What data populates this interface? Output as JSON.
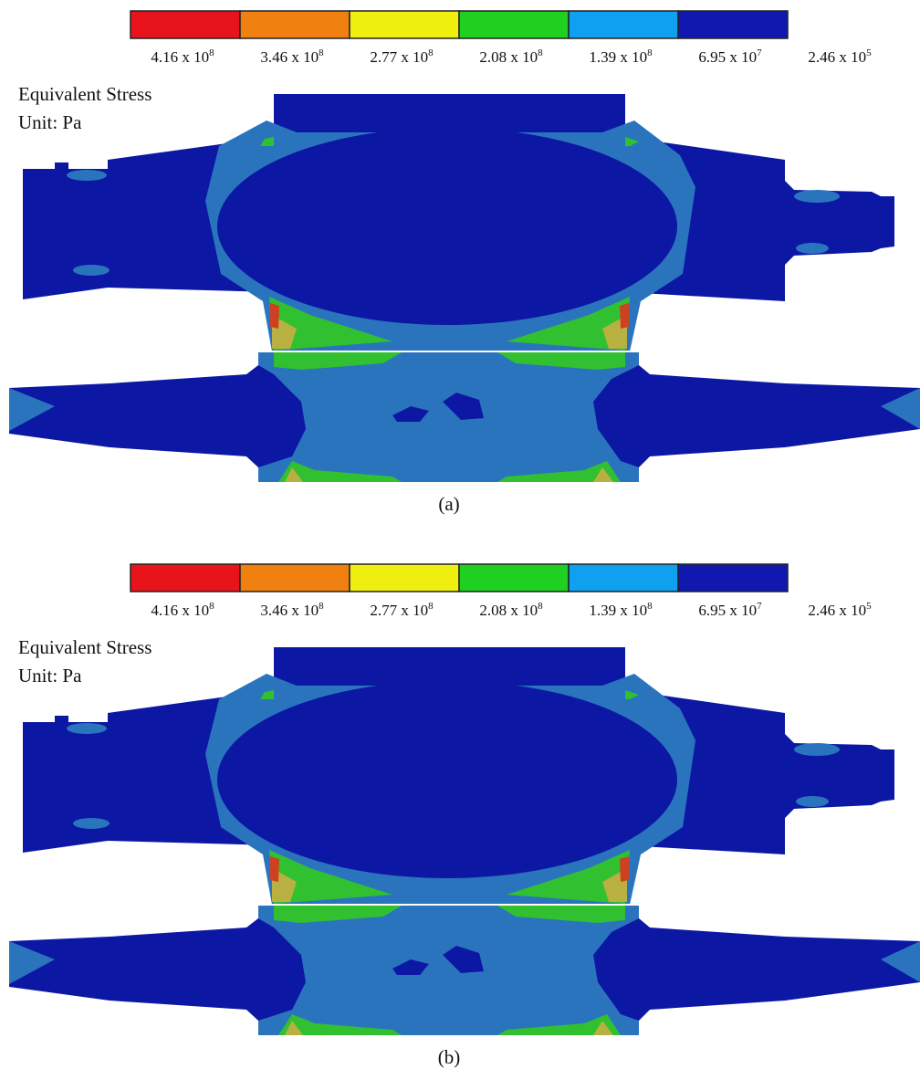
{
  "panels": [
    {
      "legend": {
        "colors": [
          "#e8141c",
          "#f08010",
          "#f0f010",
          "#20d020",
          "#10a0f0",
          "#1018b0"
        ],
        "labels": [
          {
            "base": "4.16 x 10",
            "exponent": "8"
          },
          {
            "base": "3.46 x 10",
            "exponent": "8"
          },
          {
            "base": "2.77 x 10",
            "exponent": "8"
          },
          {
            "base": "2.08 x 10",
            "exponent": "8"
          },
          {
            "base": "1.39 x 10",
            "exponent": "8"
          },
          {
            "base": "6.95 x 10",
            "exponent": "7"
          },
          {
            "base": "2.46 x 10",
            "exponent": "5"
          }
        ]
      },
      "quantity": "Equivalent Stress",
      "unit": "Unit: Pa",
      "caption": "(a)"
    },
    {
      "legend": {
        "colors": [
          "#e8141c",
          "#f08010",
          "#f0f010",
          "#20d020",
          "#10a0f0",
          "#1018b0"
        ],
        "labels": [
          {
            "base": "4.16 x 10",
            "exponent": "8"
          },
          {
            "base": "3.46 x 10",
            "exponent": "8"
          },
          {
            "base": "2.77 x 10",
            "exponent": "8"
          },
          {
            "base": "2.08 x 10",
            "exponent": "8"
          },
          {
            "base": "1.39 x 10",
            "exponent": "8"
          },
          {
            "base": "6.95 x 10",
            "exponent": "7"
          },
          {
            "base": "2.46 x 10",
            "exponent": "5"
          }
        ]
      },
      "quantity": "Equivalent Stress",
      "unit": "Unit: Pa",
      "caption": "(b)"
    }
  ]
}
